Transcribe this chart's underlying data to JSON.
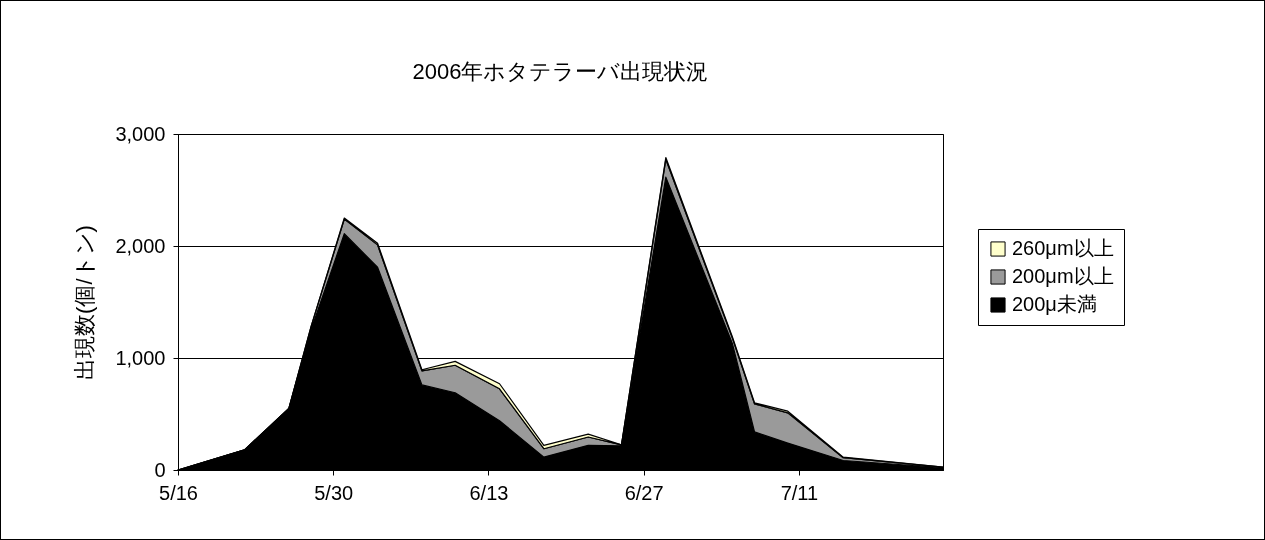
{
  "chart_data": {
    "type": "area",
    "title": "2006年ホタテラーバ出現状況",
    "ylabel": "出現数(個/トン)",
    "stacked": true,
    "x": [
      "--05-16",
      "--05-22",
      "--05-26",
      "--05-28",
      "--05-31",
      "--06-03",
      "--06-07",
      "--06-10",
      "--06-14",
      "--06-18",
      "--06-22",
      "--06-25",
      "--06-29",
      "--07-05",
      "--07-07",
      "--07-10",
      "--07-15",
      "--07-24"
    ],
    "series": [
      {
        "name": "200μ未満",
        "color": "#000000",
        "values": [
          0,
          180,
          550,
          1250,
          2110,
          1810,
          760,
          690,
          440,
          115,
          220,
          215,
          2615,
          1130,
          340,
          240,
          85,
          20
        ]
      },
      {
        "name": "200μm以上",
        "color": "#9a9a9a",
        "values": [
          0,
          0,
          0,
          30,
          130,
          200,
          125,
          245,
          285,
          75,
          75,
          10,
          160,
          50,
          250,
          270,
          25,
          5
        ]
      },
      {
        "name": "260μm以上",
        "color": "#ffffcc",
        "values": [
          0,
          0,
          0,
          0,
          10,
          15,
          10,
          35,
          45,
          30,
          25,
          0,
          15,
          10,
          10,
          15,
          5,
          0
        ]
      }
    ],
    "xlim": [
      "--05-16",
      "--07-24"
    ],
    "xticks": [
      {
        "value": "--05-16",
        "label": "5/16"
      },
      {
        "value": "--05-30",
        "label": "5/30"
      },
      {
        "value": "--06-13",
        "label": "6/13"
      },
      {
        "value": "--06-27",
        "label": "6/27"
      },
      {
        "value": "--07-11",
        "label": "7/11"
      }
    ],
    "ylim": [
      0,
      3000
    ],
    "yticks": [
      0,
      {
        "value": 1000,
        "label": "1,000"
      },
      {
        "value": 2000,
        "label": "2,000"
      },
      {
        "value": 3000,
        "label": "3,000"
      }
    ],
    "grid": "y",
    "legend": "right"
  }
}
